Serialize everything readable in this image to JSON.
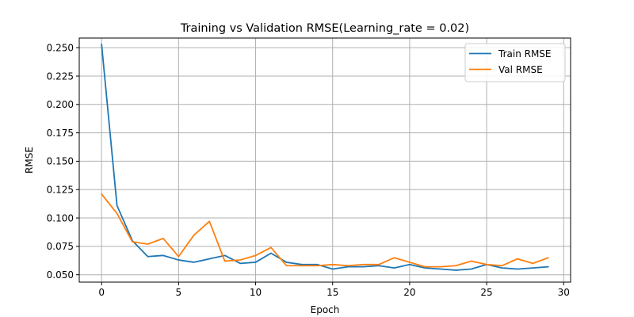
{
  "chart_data": {
    "type": "line",
    "title": "Training vs Validation RMSE(Learning_rate = 0.02)",
    "xlabel": "Epoch",
    "ylabel": "RMSE",
    "xlim": [
      -1.45,
      30.45
    ],
    "ylim": [
      0.0435,
      0.2585
    ],
    "xticks": [
      0,
      5,
      10,
      15,
      20,
      25,
      30
    ],
    "xtick_labels": [
      "0",
      "5",
      "10",
      "15",
      "20",
      "25",
      "30"
    ],
    "yticks": [
      0.05,
      0.075,
      0.1,
      0.125,
      0.15,
      0.175,
      0.2,
      0.225,
      0.25
    ],
    "ytick_labels": [
      "0.050",
      "0.075",
      "0.100",
      "0.125",
      "0.150",
      "0.175",
      "0.200",
      "0.225",
      "0.250"
    ],
    "grid": true,
    "legend_position": "top-right",
    "x": [
      0,
      1,
      2,
      3,
      4,
      5,
      6,
      7,
      8,
      9,
      10,
      11,
      12,
      13,
      14,
      15,
      16,
      17,
      18,
      19,
      20,
      21,
      22,
      23,
      24,
      25,
      26,
      27,
      28,
      29
    ],
    "series": [
      {
        "name": "Train RMSE",
        "color": "#1f77b4",
        "values": [
          0.253,
          0.111,
          0.08,
          0.066,
          0.067,
          0.063,
          0.061,
          0.064,
          0.067,
          0.06,
          0.061,
          0.069,
          0.061,
          0.059,
          0.059,
          0.055,
          0.057,
          0.057,
          0.058,
          0.056,
          0.059,
          0.056,
          0.055,
          0.054,
          0.055,
          0.059,
          0.056,
          0.055,
          0.056,
          0.057
        ]
      },
      {
        "name": "Val RMSE",
        "color": "#ff7f0e",
        "values": [
          0.121,
          0.104,
          0.079,
          0.077,
          0.082,
          0.066,
          0.085,
          0.097,
          0.062,
          0.063,
          0.067,
          0.074,
          0.058,
          0.058,
          0.058,
          0.059,
          0.058,
          0.059,
          0.059,
          0.065,
          0.061,
          0.057,
          0.057,
          0.058,
          0.062,
          0.059,
          0.058,
          0.064,
          0.06,
          0.065
        ]
      }
    ]
  }
}
